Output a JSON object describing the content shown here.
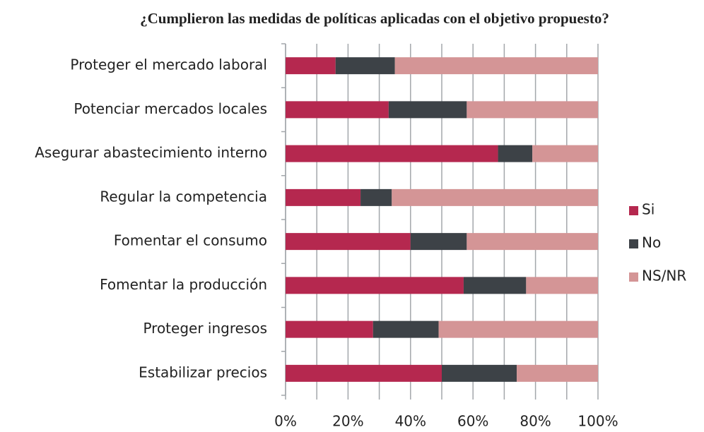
{
  "chart_data": {
    "type": "stacked_barh",
    "title": "¿Cumplieron las medidas de políticas aplicadas con el objetivo propuesto?",
    "categories": [
      "Proteger el mercado laboral",
      "Potenciar mercados locales",
      "Asegurar abastecimiento interno",
      "Regular la competencia",
      "Fomentar el consumo",
      "Fomentar la producción",
      "Proteger ingresos",
      "Estabilizar precios"
    ],
    "series": [
      {
        "name": "Si",
        "color": "#b5284f",
        "values": [
          16,
          33,
          68,
          24,
          40,
          57,
          28,
          50
        ]
      },
      {
        "name": "No",
        "color": "#3d4247",
        "values": [
          19,
          25,
          11,
          10,
          18,
          20,
          21,
          24
        ]
      },
      {
        "name": "NS/NR",
        "color": "#d49596",
        "values": [
          65,
          42,
          21,
          66,
          42,
          23,
          51,
          26
        ]
      }
    ],
    "xlim": [
      0,
      100
    ],
    "xticks": [
      {
        "value": 0,
        "label": "0%"
      },
      {
        "value": 20,
        "label": "20%"
      },
      {
        "value": 40,
        "label": "40%"
      },
      {
        "value": 60,
        "label": "60%"
      },
      {
        "value": 80,
        "label": "80%"
      },
      {
        "value": 100,
        "label": "100%"
      }
    ],
    "minor_xticks": [
      10,
      30,
      50,
      70,
      90
    ],
    "grid": true,
    "legend": "right"
  }
}
